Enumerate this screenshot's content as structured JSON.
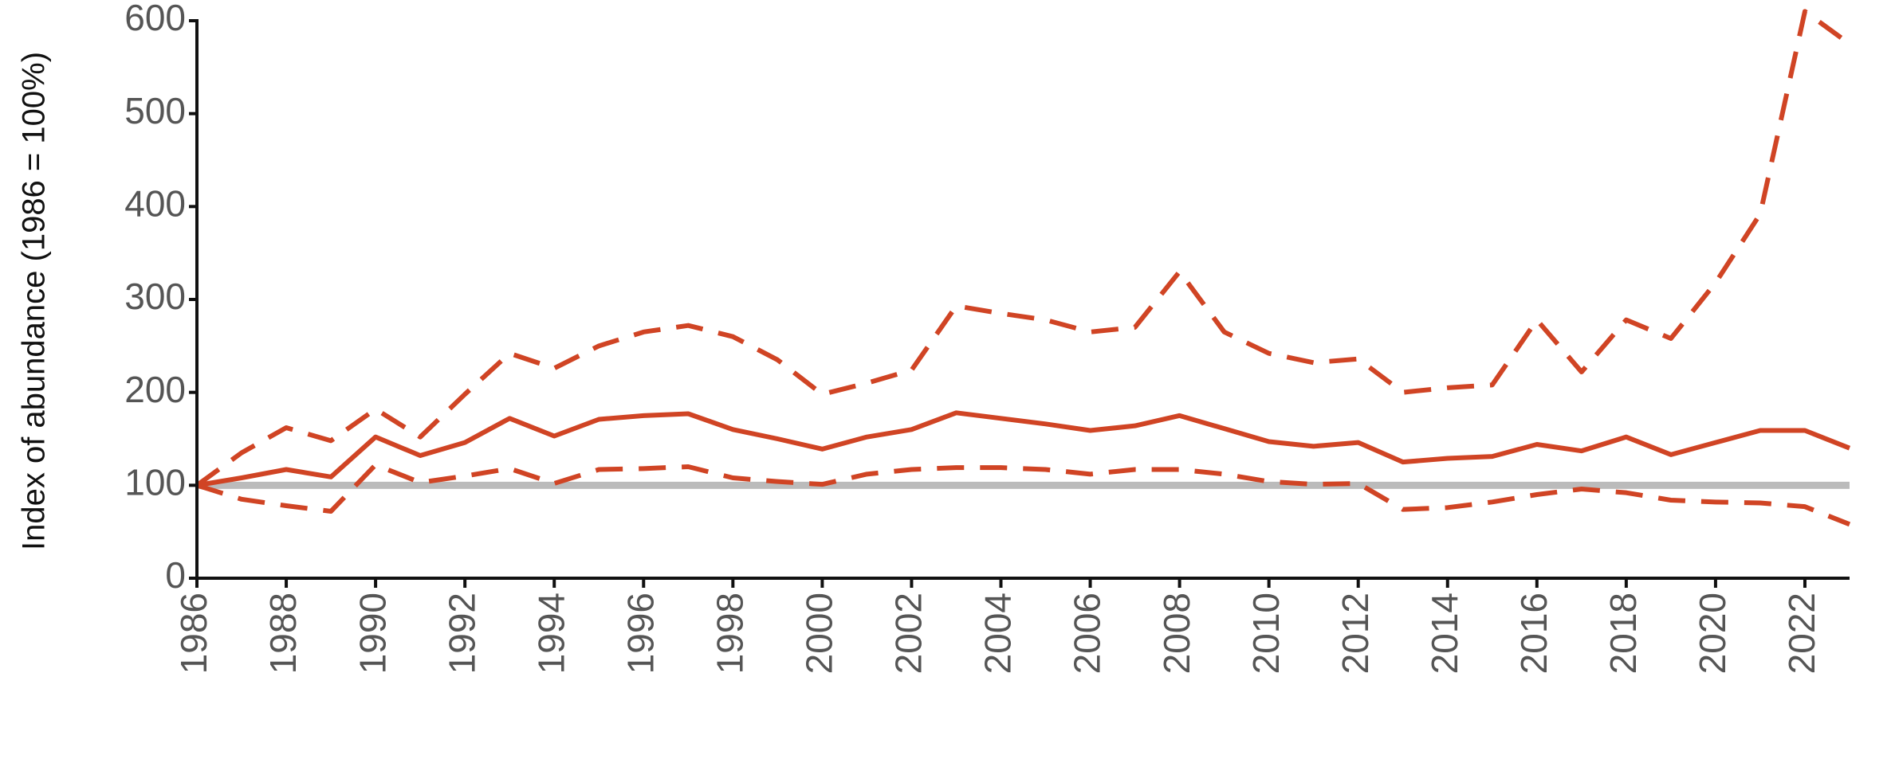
{
  "chart_data": {
    "type": "line",
    "y_label": "Index of abundance (1986 = 100%)",
    "x": [
      1986,
      1987,
      1988,
      1989,
      1990,
      1991,
      1992,
      1993,
      1994,
      1995,
      1996,
      1997,
      1998,
      1999,
      2000,
      2001,
      2002,
      2003,
      2004,
      2005,
      2006,
      2007,
      2008,
      2009,
      2010,
      2011,
      2012,
      2013,
      2014,
      2015,
      2016,
      2017,
      2018,
      2019,
      2020,
      2021,
      2022,
      2023
    ],
    "series": [
      {
        "color": "#d04424",
        "style": "solid",
        "values": [
          100,
          108,
          117,
          109,
          152,
          132,
          146,
          172,
          153,
          171,
          175,
          177,
          160,
          150,
          139,
          152,
          160,
          178,
          172,
          166,
          159,
          164,
          175,
          161,
          147,
          142,
          146,
          125,
          129,
          131,
          144,
          137,
          152,
          133,
          146,
          159,
          159,
          140
        ]
      },
      {
        "color": "#d04424",
        "style": "dashed",
        "values": [
          100,
          135,
          162,
          148,
          182,
          152,
          198,
          242,
          226,
          250,
          265,
          272,
          260,
          235,
          198,
          210,
          224,
          293,
          285,
          278,
          265,
          270,
          330,
          265,
          242,
          232,
          236,
          200,
          205,
          208,
          278,
          222,
          278,
          258,
          318,
          392,
          610,
          575
        ]
      },
      {
        "color": "#d04424",
        "style": "dashed",
        "values": [
          100,
          85,
          78,
          72,
          122,
          103,
          110,
          118,
          102,
          117,
          118,
          120,
          108,
          104,
          101,
          112,
          117,
          119,
          119,
          117,
          112,
          117,
          117,
          112,
          104,
          101,
          102,
          74,
          76,
          82,
          90,
          96,
          92,
          84,
          82,
          81,
          77,
          58
        ]
      }
    ],
    "reference_line": {
      "value": 100,
      "color": "#bbbbbb"
    },
    "xlim": [
      1986,
      2023
    ],
    "xticks": [
      1986,
      1988,
      1990,
      1992,
      1994,
      1996,
      1998,
      2000,
      2002,
      2004,
      2006,
      2008,
      2010,
      2012,
      2014,
      2016,
      2018,
      2020,
      2022
    ],
    "ylim": [
      0,
      600
    ],
    "yticks": [
      0,
      100,
      200,
      300,
      400,
      500,
      600
    ]
  }
}
